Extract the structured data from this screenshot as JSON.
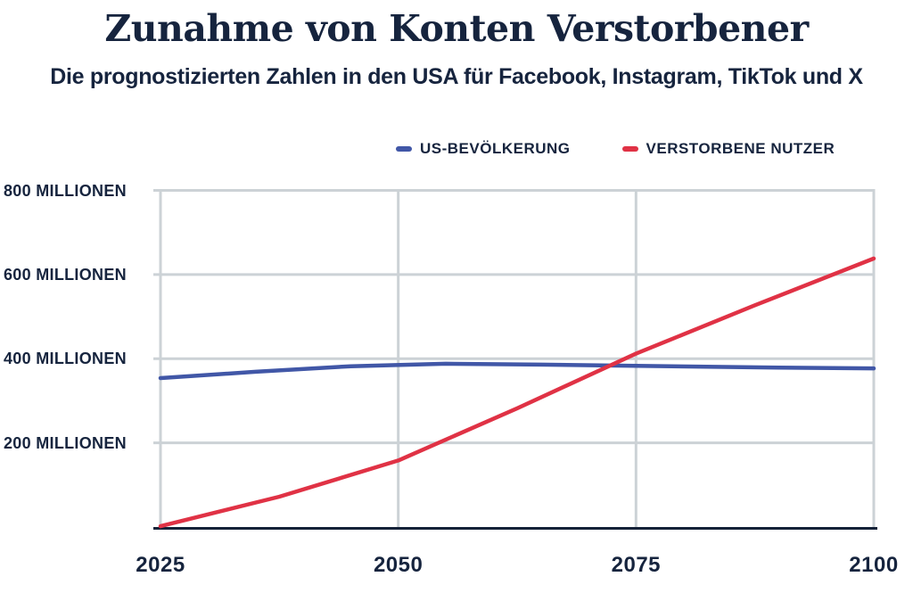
{
  "page": {
    "background": "#ffffff"
  },
  "header": {
    "title": "Zunahme von Konten Verstorbener",
    "subtitle": "Die prognostizierten Zahlen in den USA für Facebook, Instagram, TikTok und X"
  },
  "colors": {
    "navy_text": "#16243e",
    "gridline": "#ccd2d6",
    "axis_line": "#152238",
    "population_blue": "#4157a7",
    "deceased_red": "#e03245"
  },
  "legend": {
    "items": [
      {
        "label": "US-BEVÖLKERUNG",
        "color": "#4157a7"
      },
      {
        "label": "VERSTORBENE NUTZER",
        "color": "#e03245"
      }
    ]
  },
  "chart_data": {
    "type": "line",
    "title": "Zunahme von Konten Verstorbener",
    "subtitle": "Die prognostizierten Zahlen in den USA für Facebook, Instagram, TikTok und X",
    "xlabel": "",
    "ylabel": "",
    "unit": "Millionen",
    "xlim": [
      2025,
      2100
    ],
    "ylim": [
      0,
      800
    ],
    "grid": true,
    "legend_position": "top",
    "x_ticks": [
      {
        "label": "2025",
        "value": 2025
      },
      {
        "label": "2050",
        "value": 2050
      },
      {
        "label": "2075",
        "value": 2075
      },
      {
        "label": "2100",
        "value": 2100
      }
    ],
    "y_ticks": [
      {
        "label": "200 MILLIONEN",
        "value": 200
      },
      {
        "label": "400 MILLIONEN",
        "value": 400
      },
      {
        "label": "600 MILLIONEN",
        "value": 600
      },
      {
        "label": "800 MILLIONEN",
        "value": 800
      }
    ],
    "series": [
      {
        "name": "US-BEVÖLKERUNG",
        "color": "#4157a7",
        "style": "solid",
        "x": [
          2025,
          2035,
          2045,
          2055,
          2065,
          2075,
          2090,
          2100
        ],
        "values": [
          354,
          369,
          382,
          388,
          386,
          383,
          379,
          377
        ]
      },
      {
        "name": "VERSTORBENE NUTZER",
        "color": "#e03245",
        "style": "solid",
        "x": [
          2025,
          2037.5,
          2050,
          2062.5,
          2075,
          2087.5,
          2100
        ],
        "values": [
          2,
          72,
          158,
          282,
          412,
          527,
          638
        ]
      }
    ]
  }
}
